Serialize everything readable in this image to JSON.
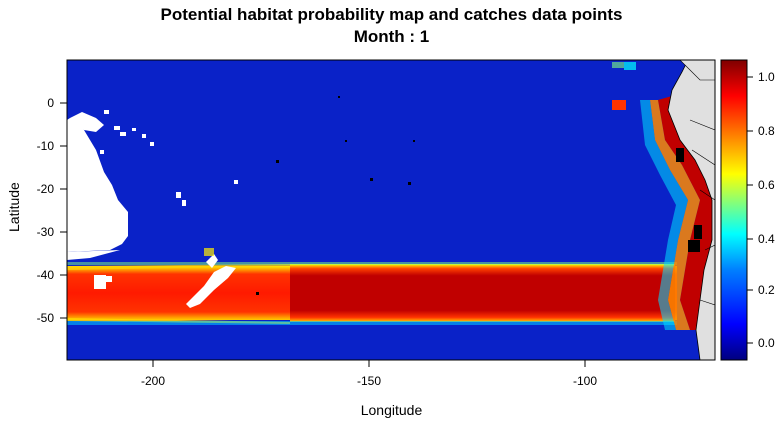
{
  "title_line1": "Potential habitat probability map and catches data points",
  "title_line2": "Month : 1",
  "axes": {
    "xlabel": "Longitude",
    "ylabel": "Latitude",
    "x_ticks": [
      "-200",
      "-150",
      "-100"
    ],
    "y_ticks": [
      "0",
      "-10",
      "-20",
      "-30",
      "-40",
      "-50"
    ]
  },
  "colorbar": {
    "ticks": [
      "1.0",
      "0.8",
      "0.6",
      "0.4",
      "0.2",
      "0.0"
    ],
    "colors": [
      "#00007f",
      "#0000ff",
      "#007fff",
      "#00ffff",
      "#7fff7f",
      "#ffff00",
      "#ff7f00",
      "#ff0000",
      "#7f0000"
    ]
  },
  "colors": {
    "ocean": "#0a22c8",
    "band_core": "#b30000",
    "band_edge": "#ff3300",
    "land": "#e0e0e0",
    "blank": "#ffffff"
  }
}
